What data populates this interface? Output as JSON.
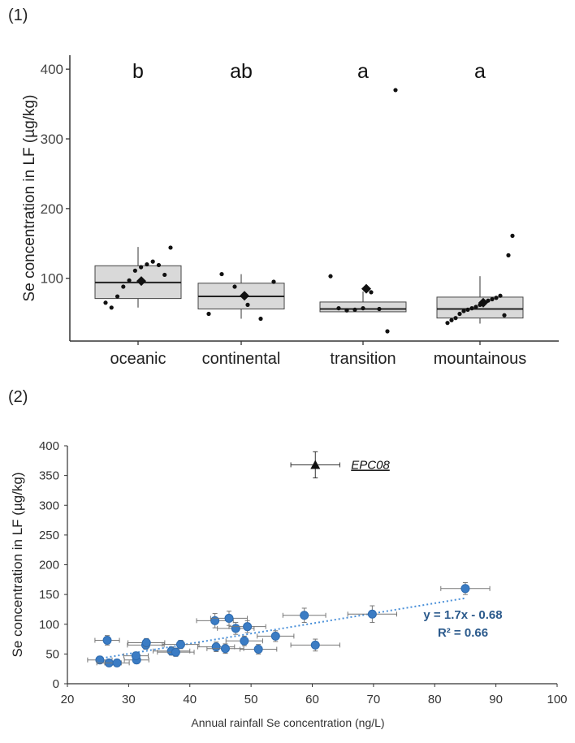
{
  "panels": {
    "p1": "(1)",
    "p2": "(2)"
  },
  "chart_data": [
    {
      "type": "boxplot",
      "ylabel": "Se concentration in LF (µg/kg)",
      "ylim": [
        10,
        420
      ],
      "yticks": [
        100,
        200,
        300,
        400
      ],
      "grid": false,
      "categories": [
        "oceanic",
        "continental",
        "transition",
        "mountainous"
      ],
      "letters": [
        "b",
        "ab",
        "a",
        "a"
      ],
      "boxes": [
        {
          "q1": 71,
          "median": 94,
          "q3": 118,
          "whisker_low": 58,
          "whisker_high": 145,
          "mean": 96,
          "points": [
            65,
            58,
            74,
            88,
            97,
            111,
            116,
            120,
            124,
            119,
            105,
            144
          ]
        },
        {
          "q1": 56,
          "median": 74,
          "q3": 93,
          "whisker_low": 42,
          "whisker_high": 106,
          "mean": 75,
          "points": [
            49,
            106,
            88,
            62,
            42,
            95
          ]
        },
        {
          "q1": 52,
          "median": 56,
          "q3": 66,
          "whisker_low": 52,
          "whisker_high": 81,
          "mean": 85,
          "points": [
            103,
            57,
            54,
            55,
            57,
            80,
            56,
            24,
            370
          ]
        },
        {
          "q1": 43,
          "median": 56,
          "q3": 73,
          "whisker_low": 35,
          "whisker_high": 103,
          "mean": 65,
          "points": [
            36,
            40,
            43,
            49,
            53,
            55,
            57,
            59,
            62,
            66,
            68,
            70,
            72,
            75,
            47,
            133,
            161
          ]
        }
      ]
    },
    {
      "type": "scatter",
      "xlabel": "Annual rainfall Se concentration (ng/L)",
      "ylabel": "Se concentration in LF (µg/kg)",
      "xlim": [
        20,
        100
      ],
      "ylim": [
        0,
        400
      ],
      "xticks": [
        20,
        30,
        40,
        50,
        60,
        70,
        80,
        90,
        100
      ],
      "yticks": [
        0,
        50,
        100,
        150,
        200,
        250,
        300,
        350,
        400
      ],
      "grid": false,
      "trendline": {
        "slope": 1.7,
        "intercept": -0.68,
        "x_from": 25,
        "x_to": 85,
        "style": "dotted"
      },
      "equation": "y = 1.7x - 0.68",
      "r2": "R² = 0.66",
      "outlier": {
        "label": "EPC08",
        "x": 60.5,
        "y": 368,
        "xerr": 4,
        "yerr": 22
      },
      "points": [
        {
          "x": 26.5,
          "y": 73,
          "xerr": 2,
          "yerr": 8
        },
        {
          "x": 25.3,
          "y": 40,
          "xerr": 2,
          "yerr": 6
        },
        {
          "x": 26.8,
          "y": 35,
          "xerr": 2,
          "yerr": 5
        },
        {
          "x": 28.1,
          "y": 35,
          "xerr": 2,
          "yerr": 5
        },
        {
          "x": 31.3,
          "y": 40,
          "xerr": 2,
          "yerr": 6
        },
        {
          "x": 31.2,
          "y": 47,
          "xerr": 2,
          "yerr": 6
        },
        {
          "x": 32.8,
          "y": 65,
          "xerr": 3,
          "yerr": 7
        },
        {
          "x": 32.9,
          "y": 69,
          "xerr": 3,
          "yerr": 7
        },
        {
          "x": 37.0,
          "y": 55,
          "xerr": 3,
          "yerr": 7
        },
        {
          "x": 37.7,
          "y": 53,
          "xerr": 3,
          "yerr": 7
        },
        {
          "x": 38.5,
          "y": 66,
          "xerr": 3,
          "yerr": 7
        },
        {
          "x": 44.1,
          "y": 106,
          "xerr": 3,
          "yerr": 12
        },
        {
          "x": 46.4,
          "y": 110,
          "xerr": 3,
          "yerr": 12
        },
        {
          "x": 47.5,
          "y": 93,
          "xerr": 3,
          "yerr": 10
        },
        {
          "x": 49.4,
          "y": 96,
          "xerr": 3,
          "yerr": 10
        },
        {
          "x": 44.3,
          "y": 62,
          "xerr": 3,
          "yerr": 8
        },
        {
          "x": 45.8,
          "y": 59,
          "xerr": 3,
          "yerr": 8
        },
        {
          "x": 48.9,
          "y": 72,
          "xerr": 3,
          "yerr": 8
        },
        {
          "x": 51.2,
          "y": 58,
          "xerr": 3,
          "yerr": 8
        },
        {
          "x": 54.0,
          "y": 80,
          "xerr": 3,
          "yerr": 9
        },
        {
          "x": 58.7,
          "y": 115,
          "xerr": 3.5,
          "yerr": 12
        },
        {
          "x": 60.5,
          "y": 65,
          "xerr": 4,
          "yerr": 10
        },
        {
          "x": 69.8,
          "y": 117,
          "xerr": 4,
          "yerr": 14
        },
        {
          "x": 85.0,
          "y": 160,
          "xerr": 4,
          "yerr": 10
        }
      ]
    }
  ]
}
